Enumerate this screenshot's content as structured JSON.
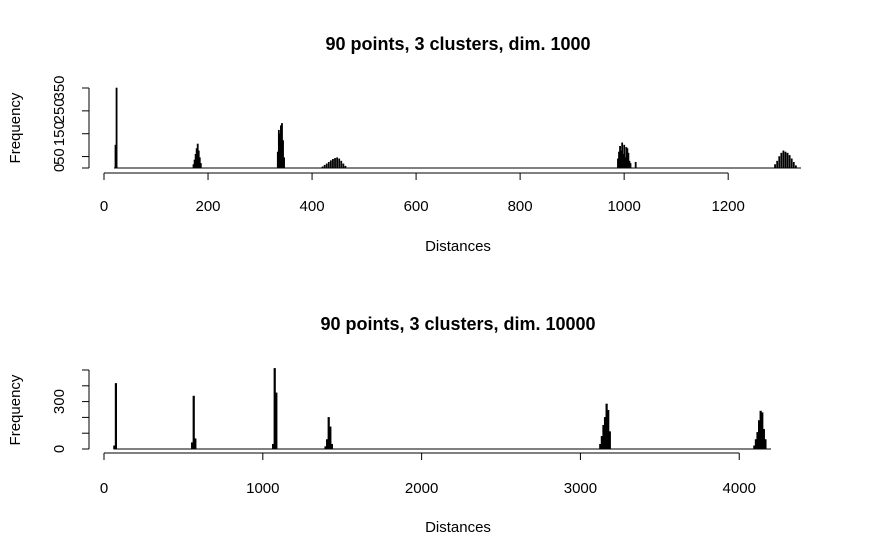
{
  "chart_data": [
    {
      "type": "bar",
      "title": "90 points, 3 clusters, dim. 1000",
      "xlabel": "Distances",
      "ylabel": "Frequency",
      "xlim": [
        0,
        1340
      ],
      "ylim": [
        0,
        350
      ],
      "xticks": [
        0,
        200,
        400,
        600,
        800,
        1000,
        1200
      ],
      "yticks": [
        0,
        50,
        150,
        250,
        350
      ],
      "bin_width": 2,
      "grid": false,
      "bins": [
        {
          "x": 22,
          "y": 100
        },
        {
          "x": 24,
          "y": 350
        },
        {
          "x": 172,
          "y": 15
        },
        {
          "x": 174,
          "y": 35
        },
        {
          "x": 176,
          "y": 60
        },
        {
          "x": 178,
          "y": 85
        },
        {
          "x": 180,
          "y": 105
        },
        {
          "x": 182,
          "y": 75
        },
        {
          "x": 184,
          "y": 45
        },
        {
          "x": 186,
          "y": 20
        },
        {
          "x": 334,
          "y": 70
        },
        {
          "x": 336,
          "y": 165
        },
        {
          "x": 338,
          "y": 150
        },
        {
          "x": 340,
          "y": 185
        },
        {
          "x": 342,
          "y": 195
        },
        {
          "x": 344,
          "y": 120
        },
        {
          "x": 346,
          "y": 45
        },
        {
          "x": 420,
          "y": 5
        },
        {
          "x": 424,
          "y": 12
        },
        {
          "x": 428,
          "y": 18
        },
        {
          "x": 432,
          "y": 25
        },
        {
          "x": 436,
          "y": 32
        },
        {
          "x": 440,
          "y": 38
        },
        {
          "x": 444,
          "y": 42
        },
        {
          "x": 448,
          "y": 45
        },
        {
          "x": 452,
          "y": 40
        },
        {
          "x": 456,
          "y": 30
        },
        {
          "x": 460,
          "y": 18
        },
        {
          "x": 464,
          "y": 8
        },
        {
          "x": 988,
          "y": 40
        },
        {
          "x": 990,
          "y": 70
        },
        {
          "x": 992,
          "y": 95
        },
        {
          "x": 994,
          "y": 75
        },
        {
          "x": 996,
          "y": 110
        },
        {
          "x": 998,
          "y": 60
        },
        {
          "x": 1000,
          "y": 100
        },
        {
          "x": 1002,
          "y": 45
        },
        {
          "x": 1004,
          "y": 90
        },
        {
          "x": 1006,
          "y": 85
        },
        {
          "x": 1008,
          "y": 65
        },
        {
          "x": 1010,
          "y": 30
        },
        {
          "x": 1012,
          "y": 20
        },
        {
          "x": 1022,
          "y": 25
        },
        {
          "x": 1290,
          "y": 15
        },
        {
          "x": 1294,
          "y": 30
        },
        {
          "x": 1298,
          "y": 50
        },
        {
          "x": 1302,
          "y": 65
        },
        {
          "x": 1306,
          "y": 75
        },
        {
          "x": 1310,
          "y": 70
        },
        {
          "x": 1314,
          "y": 65
        },
        {
          "x": 1318,
          "y": 55
        },
        {
          "x": 1322,
          "y": 40
        },
        {
          "x": 1326,
          "y": 25
        },
        {
          "x": 1330,
          "y": 10
        }
      ]
    },
    {
      "type": "bar",
      "title": "90 points, 3 clusters, dim. 10000",
      "xlabel": "Distances",
      "ylabel": "Frequency",
      "xlim": [
        0,
        4200
      ],
      "ylim": [
        0,
        500
      ],
      "xticks": [
        0,
        1000,
        2000,
        3000,
        4000
      ],
      "yticks": [
        0,
        300
      ],
      "y_minor_ticks": [
        0,
        100,
        200,
        300,
        400,
        500
      ],
      "bin_width": 10,
      "grid": false,
      "bins": [
        {
          "x": 65,
          "y": 20
        },
        {
          "x": 75,
          "y": 415
        },
        {
          "x": 555,
          "y": 40
        },
        {
          "x": 565,
          "y": 335
        },
        {
          "x": 575,
          "y": 65
        },
        {
          "x": 1065,
          "y": 30
        },
        {
          "x": 1075,
          "y": 510
        },
        {
          "x": 1085,
          "y": 355
        },
        {
          "x": 1395,
          "y": 15
        },
        {
          "x": 1405,
          "y": 60
        },
        {
          "x": 1415,
          "y": 200
        },
        {
          "x": 1425,
          "y": 140
        },
        {
          "x": 1435,
          "y": 30
        },
        {
          "x": 3125,
          "y": 30
        },
        {
          "x": 3135,
          "y": 80
        },
        {
          "x": 3145,
          "y": 150
        },
        {
          "x": 3155,
          "y": 200
        },
        {
          "x": 3165,
          "y": 285
        },
        {
          "x": 3175,
          "y": 245
        },
        {
          "x": 3185,
          "y": 110
        },
        {
          "x": 4095,
          "y": 20
        },
        {
          "x": 4105,
          "y": 60
        },
        {
          "x": 4115,
          "y": 105
        },
        {
          "x": 4125,
          "y": 180
        },
        {
          "x": 4135,
          "y": 240
        },
        {
          "x": 4145,
          "y": 230
        },
        {
          "x": 4155,
          "y": 125
        },
        {
          "x": 4165,
          "y": 60
        }
      ]
    }
  ]
}
